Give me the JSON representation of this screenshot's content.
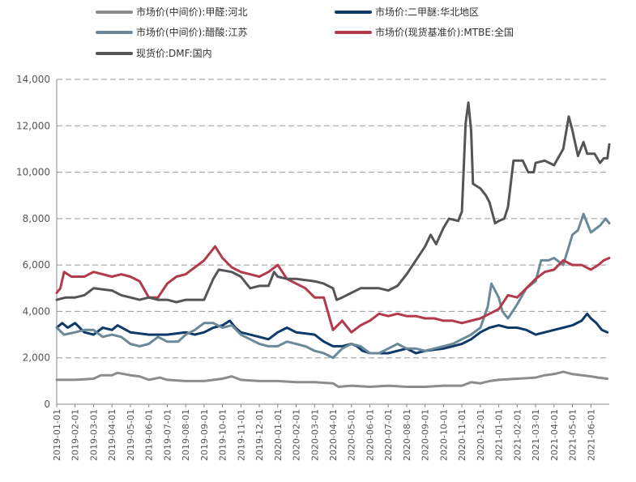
{
  "chart_data": {
    "type": "line",
    "title": "",
    "xlabel": "",
    "ylabel": "",
    "ylim": [
      0,
      14000
    ],
    "yticks": [
      0,
      2000,
      4000,
      6000,
      8000,
      10000,
      12000,
      14000
    ],
    "ytick_labels": [
      "0",
      "2,000",
      "4,000",
      "6,000",
      "8,000",
      "10,000",
      "12,000",
      "14,000"
    ],
    "grid": "horizontal dashed",
    "legend_position": "top",
    "x_start": "2019-01-01",
    "x_end": "2021-06-30",
    "xtick_labels": [
      "2019-01-01",
      "2019-02-01",
      "2019-03-01",
      "2019-04-01",
      "2019-05-01",
      "2019-06-01",
      "2019-07-01",
      "2019-08-01",
      "2019-09-01",
      "2019-10-01",
      "2019-11-01",
      "2019-12-01",
      "2020-01-01",
      "2020-02-01",
      "2020-03-01",
      "2020-04-01",
      "2020-05-01",
      "2020-06-01",
      "2020-07-01",
      "2020-08-01",
      "2020-09-01",
      "2020-10-01",
      "2020-11-01",
      "2020-12-01",
      "2021-01-01",
      "2021-02-01",
      "2021-03-01",
      "2021-04-01",
      "2021-05-01",
      "2021-06-01"
    ],
    "series": [
      {
        "name": "市场价(中间价):甲醛:河北",
        "color": "#8c8c8c",
        "points": [
          [
            0,
            1050
          ],
          [
            1,
            1050
          ],
          [
            2,
            1100
          ],
          [
            2.4,
            1250
          ],
          [
            3,
            1250
          ],
          [
            3.3,
            1350
          ],
          [
            4,
            1250
          ],
          [
            4.5,
            1200
          ],
          [
            5,
            1050
          ],
          [
            5.6,
            1150
          ],
          [
            6,
            1050
          ],
          [
            7,
            1000
          ],
          [
            8,
            1000
          ],
          [
            9,
            1100
          ],
          [
            9.5,
            1200
          ],
          [
            10,
            1050
          ],
          [
            11,
            1000
          ],
          [
            12,
            1000
          ],
          [
            13,
            950
          ],
          [
            14,
            950
          ],
          [
            15,
            900
          ],
          [
            15.3,
            750
          ],
          [
            16,
            800
          ],
          [
            17,
            750
          ],
          [
            18,
            800
          ],
          [
            19,
            750
          ],
          [
            20,
            750
          ],
          [
            21,
            800
          ],
          [
            22,
            800
          ],
          [
            22.5,
            950
          ],
          [
            23,
            900
          ],
          [
            23.5,
            1000
          ],
          [
            24,
            1050
          ],
          [
            25,
            1100
          ],
          [
            26,
            1150
          ],
          [
            26.5,
            1250
          ],
          [
            27,
            1300
          ],
          [
            27.5,
            1400
          ],
          [
            28,
            1300
          ],
          [
            28.5,
            1250
          ],
          [
            29,
            1200
          ],
          [
            29.4,
            1150
          ],
          [
            29.9,
            1100
          ]
        ]
      },
      {
        "name": "市场价:二甲醚:华北地区",
        "color": "#0e3a6a",
        "points": [
          [
            0,
            3300
          ],
          [
            0.3,
            3500
          ],
          [
            0.6,
            3300
          ],
          [
            1,
            3500
          ],
          [
            1.5,
            3100
          ],
          [
            2,
            3000
          ],
          [
            2.5,
            3300
          ],
          [
            3,
            3200
          ],
          [
            3.3,
            3400
          ],
          [
            4,
            3100
          ],
          [
            5,
            3000
          ],
          [
            6,
            3000
          ],
          [
            7,
            3100
          ],
          [
            7.5,
            3000
          ],
          [
            8,
            3100
          ],
          [
            8.5,
            3300
          ],
          [
            9,
            3400
          ],
          [
            9.4,
            3600
          ],
          [
            9.7,
            3300
          ],
          [
            10,
            3100
          ],
          [
            11,
            2900
          ],
          [
            11.5,
            2800
          ],
          [
            12,
            3100
          ],
          [
            12.5,
            3300
          ],
          [
            13,
            3100
          ],
          [
            14,
            3000
          ],
          [
            14.5,
            2700
          ],
          [
            15,
            2500
          ],
          [
            15.5,
            2500
          ],
          [
            16,
            2600
          ],
          [
            16.3,
            2500
          ],
          [
            16.6,
            2300
          ],
          [
            17,
            2200
          ],
          [
            18,
            2200
          ],
          [
            19,
            2400
          ],
          [
            19.5,
            2200
          ],
          [
            20,
            2300
          ],
          [
            21,
            2400
          ],
          [
            21.5,
            2500
          ],
          [
            22,
            2600
          ],
          [
            22.5,
            2800
          ],
          [
            23,
            3100
          ],
          [
            23.5,
            3300
          ],
          [
            24,
            3400
          ],
          [
            24.5,
            3300
          ],
          [
            25,
            3300
          ],
          [
            25.5,
            3200
          ],
          [
            26,
            3000
          ],
          [
            26.5,
            3100
          ],
          [
            27,
            3200
          ],
          [
            27.5,
            3300
          ],
          [
            28,
            3400
          ],
          [
            28.5,
            3600
          ],
          [
            28.8,
            3900
          ],
          [
            29,
            3700
          ],
          [
            29.3,
            3500
          ],
          [
            29.6,
            3200
          ],
          [
            29.9,
            3100
          ]
        ]
      },
      {
        "name": "市场价(中间价):醋酸:江苏",
        "color": "#6a8a9a",
        "points": [
          [
            0,
            3300
          ],
          [
            0.4,
            3000
          ],
          [
            1,
            3100
          ],
          [
            1.5,
            3200
          ],
          [
            2,
            3200
          ],
          [
            2.5,
            2900
          ],
          [
            3,
            3000
          ],
          [
            3.5,
            2900
          ],
          [
            4,
            2600
          ],
          [
            4.5,
            2500
          ],
          [
            5,
            2600
          ],
          [
            5.5,
            2900
          ],
          [
            6,
            2700
          ],
          [
            6.6,
            2700
          ],
          [
            7,
            3000
          ],
          [
            7.5,
            3200
          ],
          [
            8,
            3500
          ],
          [
            8.5,
            3500
          ],
          [
            9,
            3300
          ],
          [
            9.5,
            3400
          ],
          [
            10,
            3000
          ],
          [
            10.5,
            2800
          ],
          [
            11,
            2600
          ],
          [
            11.5,
            2500
          ],
          [
            12,
            2500
          ],
          [
            12.5,
            2700
          ],
          [
            13,
            2600
          ],
          [
            13.5,
            2500
          ],
          [
            14,
            2300
          ],
          [
            14.5,
            2200
          ],
          [
            15,
            2000
          ],
          [
            15.5,
            2400
          ],
          [
            16,
            2600
          ],
          [
            16.5,
            2500
          ],
          [
            17,
            2200
          ],
          [
            17.5,
            2200
          ],
          [
            18,
            2400
          ],
          [
            18.5,
            2600
          ],
          [
            19,
            2400
          ],
          [
            19.5,
            2400
          ],
          [
            20,
            2300
          ],
          [
            21,
            2500
          ],
          [
            21.5,
            2600
          ],
          [
            22,
            2800
          ],
          [
            22.5,
            3000
          ],
          [
            23,
            3300
          ],
          [
            23.4,
            4200
          ],
          [
            23.6,
            5200
          ],
          [
            24,
            4600
          ],
          [
            24.2,
            4000
          ],
          [
            24.5,
            3700
          ],
          [
            25,
            4300
          ],
          [
            25.5,
            5000
          ],
          [
            26,
            5300
          ],
          [
            26.3,
            6200
          ],
          [
            26.7,
            6200
          ],
          [
            27,
            6300
          ],
          [
            27.5,
            6000
          ],
          [
            28,
            7300
          ],
          [
            28.3,
            7500
          ],
          [
            28.6,
            8200
          ],
          [
            29,
            7400
          ],
          [
            29.5,
            7700
          ],
          [
            29.8,
            8000
          ],
          [
            30,
            7800
          ]
        ]
      },
      {
        "name": "市场价(现货基准价):MTBE:全国",
        "color": "#b23a4a",
        "points": [
          [
            0,
            4800
          ],
          [
            0.2,
            5000
          ],
          [
            0.4,
            5700
          ],
          [
            0.8,
            5500
          ],
          [
            1.5,
            5500
          ],
          [
            2,
            5700
          ],
          [
            2.5,
            5600
          ],
          [
            3,
            5500
          ],
          [
            3.5,
            5600
          ],
          [
            4,
            5500
          ],
          [
            4.5,
            5300
          ],
          [
            5,
            4600
          ],
          [
            5.5,
            4600
          ],
          [
            6,
            5200
          ],
          [
            6.5,
            5500
          ],
          [
            7,
            5600
          ],
          [
            7.5,
            5900
          ],
          [
            8,
            6200
          ],
          [
            8.4,
            6600
          ],
          [
            8.6,
            6800
          ],
          [
            9,
            6300
          ],
          [
            9.5,
            5900
          ],
          [
            10,
            5700
          ],
          [
            10.5,
            5600
          ],
          [
            11,
            5500
          ],
          [
            11.5,
            5700
          ],
          [
            12,
            6000
          ],
          [
            12.5,
            5400
          ],
          [
            13,
            5200
          ],
          [
            13.5,
            5000
          ],
          [
            14,
            4600
          ],
          [
            14.5,
            4600
          ],
          [
            15,
            3200
          ],
          [
            15.5,
            3600
          ],
          [
            16,
            3100
          ],
          [
            16.5,
            3400
          ],
          [
            17,
            3600
          ],
          [
            17.5,
            3900
          ],
          [
            18,
            3800
          ],
          [
            18.5,
            3900
          ],
          [
            19,
            3800
          ],
          [
            19.5,
            3800
          ],
          [
            20,
            3700
          ],
          [
            20.5,
            3700
          ],
          [
            21,
            3600
          ],
          [
            21.5,
            3600
          ],
          [
            22,
            3500
          ],
          [
            23,
            3700
          ],
          [
            23.5,
            3900
          ],
          [
            24,
            4100
          ],
          [
            24.5,
            4700
          ],
          [
            25,
            4600
          ],
          [
            25.5,
            5000
          ],
          [
            26,
            5400
          ],
          [
            26.5,
            5700
          ],
          [
            27,
            5800
          ],
          [
            27.5,
            6200
          ],
          [
            28,
            6000
          ],
          [
            28.5,
            6000
          ],
          [
            29,
            5800
          ],
          [
            29.4,
            6000
          ],
          [
            29.7,
            6200
          ],
          [
            30,
            6300
          ]
        ]
      },
      {
        "name": "现货价:DMF:国内",
        "color": "#555555",
        "points": [
          [
            0,
            4500
          ],
          [
            0.5,
            4600
          ],
          [
            1,
            4600
          ],
          [
            1.5,
            4700
          ],
          [
            2,
            5000
          ],
          [
            3,
            4900
          ],
          [
            3.5,
            4700
          ],
          [
            4,
            4600
          ],
          [
            4.5,
            4500
          ],
          [
            5,
            4600
          ],
          [
            5.5,
            4500
          ],
          [
            6,
            4500
          ],
          [
            6.5,
            4400
          ],
          [
            7,
            4500
          ],
          [
            8,
            4500
          ],
          [
            8.5,
            5400
          ],
          [
            8.8,
            5800
          ],
          [
            9.5,
            5700
          ],
          [
            10,
            5500
          ],
          [
            10.5,
            5000
          ],
          [
            11,
            5100
          ],
          [
            11.5,
            5100
          ],
          [
            11.8,
            5700
          ],
          [
            12,
            5500
          ],
          [
            12.5,
            5400
          ],
          [
            13,
            5400
          ],
          [
            14,
            5300
          ],
          [
            14.5,
            5200
          ],
          [
            15,
            5000
          ],
          [
            15.2,
            4500
          ],
          [
            15.5,
            4600
          ],
          [
            16,
            4800
          ],
          [
            16.5,
            5000
          ],
          [
            17,
            5000
          ],
          [
            17.5,
            5000
          ],
          [
            18,
            4900
          ],
          [
            18.5,
            5100
          ],
          [
            19,
            5600
          ],
          [
            19.5,
            6200
          ],
          [
            20,
            6800
          ],
          [
            20.3,
            7300
          ],
          [
            20.6,
            6900
          ],
          [
            21,
            7600
          ],
          [
            21.3,
            8000
          ],
          [
            21.8,
            7900
          ],
          [
            22,
            8300
          ],
          [
            22.2,
            12100
          ],
          [
            22.35,
            13000
          ],
          [
            22.5,
            11800
          ],
          [
            22.6,
            9500
          ],
          [
            23,
            9300
          ],
          [
            23.3,
            9000
          ],
          [
            23.5,
            8700
          ],
          [
            23.8,
            7800
          ],
          [
            24,
            7900
          ],
          [
            24.3,
            8000
          ],
          [
            24.5,
            8500
          ],
          [
            24.8,
            10500
          ],
          [
            25.3,
            10500
          ],
          [
            25.6,
            10000
          ],
          [
            25.9,
            10000
          ],
          [
            26,
            10400
          ],
          [
            26.5,
            10500
          ],
          [
            27,
            10300
          ],
          [
            27.5,
            11000
          ],
          [
            27.8,
            12400
          ],
          [
            28,
            11800
          ],
          [
            28.3,
            10700
          ],
          [
            28.6,
            11300
          ],
          [
            28.8,
            10800
          ],
          [
            29.2,
            10800
          ],
          [
            29.5,
            10400
          ],
          [
            29.7,
            10600
          ],
          [
            29.9,
            10600
          ],
          [
            30,
            11200
          ]
        ]
      }
    ]
  }
}
